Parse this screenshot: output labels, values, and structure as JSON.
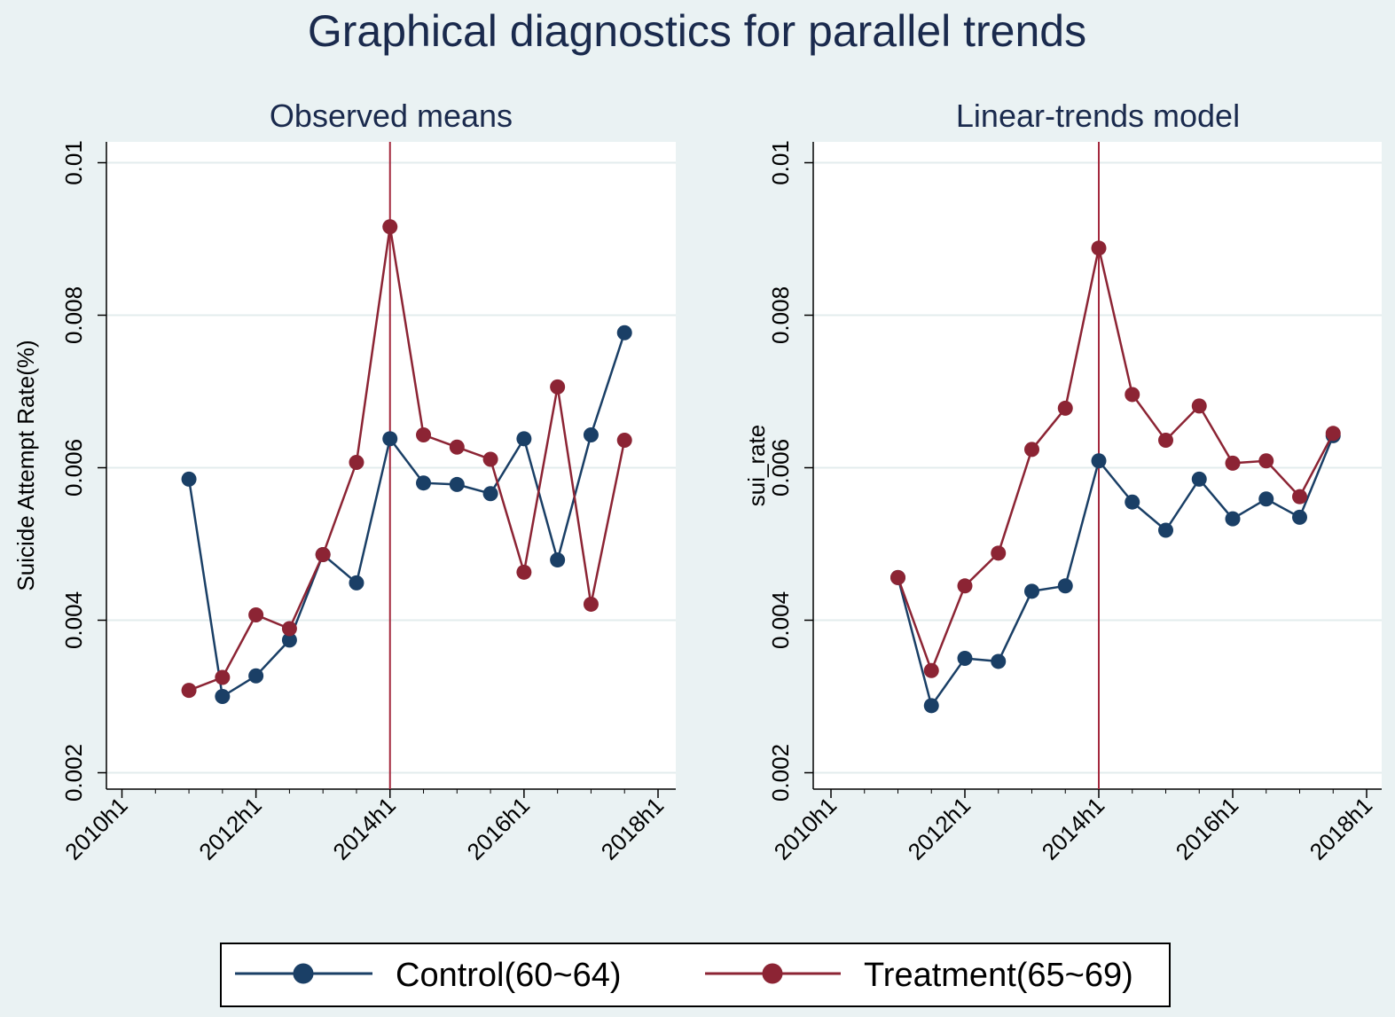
{
  "figure": {
    "title": "Graphical diagnostics for parallel trends",
    "background": "#eaf2f3",
    "title_color": "#1a2a4d"
  },
  "legend": {
    "placement": "bottom",
    "items": [
      {
        "label": "Control(60~64)",
        "color": "#1a3f66"
      },
      {
        "label": "Treatment(65~69)",
        "color": "#8c2434"
      }
    ]
  },
  "chart_data": [
    {
      "type": "line",
      "title": "Observed means",
      "xlabel": "",
      "ylabel": "Suicide Attempt Rate(%)",
      "x_ticks": [
        "2010h1",
        "2012h1",
        "2014h1",
        "2016h1",
        "2018h1"
      ],
      "x_tick_values": [
        2010.0,
        2012.0,
        2014.0,
        2016.0,
        2018.0
      ],
      "xlim": [
        2010.0,
        2018.0
      ],
      "y_ticks": [
        "0.002",
        "0.004",
        "0.006",
        "0.008",
        "0.01"
      ],
      "y_tick_values": [
        0.002,
        0.004,
        0.006,
        0.008,
        0.01
      ],
      "ylim": [
        0.002,
        0.01
      ],
      "grid": true,
      "reference_line_x": 2014.0,
      "reference_line_color": "#a3283d",
      "x": [
        2011.0,
        2011.5,
        2012.0,
        2012.5,
        2013.0,
        2013.5,
        2014.0,
        2014.5,
        2015.0,
        2015.5,
        2016.0,
        2016.5,
        2017.0,
        2017.5
      ],
      "series": [
        {
          "name": "Control(60~64)",
          "color": "#1a3f66",
          "values": [
            0.00585,
            0.003,
            0.00327,
            0.00374,
            0.00486,
            0.00449,
            0.00638,
            0.0058,
            0.00578,
            0.00566,
            0.00638,
            0.00479,
            0.00643,
            0.00777
          ]
        },
        {
          "name": "Treatment(65~69)",
          "color": "#8c2434",
          "values": [
            0.00308,
            0.00325,
            0.00407,
            0.00389,
            0.00486,
            0.00607,
            0.00916,
            0.00643,
            0.00627,
            0.00611,
            0.00463,
            0.00706,
            0.00421,
            0.00636
          ]
        }
      ]
    },
    {
      "type": "line",
      "title": "Linear-trends model",
      "xlabel": "",
      "ylabel": "sui_rate",
      "x_ticks": [
        "2010h1",
        "2012h1",
        "2014h1",
        "2016h1",
        "2018h1"
      ],
      "x_tick_values": [
        2010.0,
        2012.0,
        2014.0,
        2016.0,
        2018.0
      ],
      "xlim": [
        2010.0,
        2018.0
      ],
      "y_ticks": [
        "0.002",
        "0.004",
        "0.006",
        "0.008",
        "0.01"
      ],
      "y_tick_values": [
        0.002,
        0.004,
        0.006,
        0.008,
        0.01
      ],
      "ylim": [
        0.002,
        0.01
      ],
      "grid": true,
      "reference_line_x": 2014.0,
      "reference_line_color": "#a3283d",
      "x": [
        2011.0,
        2011.5,
        2012.0,
        2012.5,
        2013.0,
        2013.5,
        2014.0,
        2014.5,
        2015.0,
        2015.5,
        2016.0,
        2016.5,
        2017.0,
        2017.5
      ],
      "series": [
        {
          "name": "Control(60~64)",
          "color": "#1a3f66",
          "values": [
            0.00456,
            0.00288,
            0.0035,
            0.00346,
            0.00438,
            0.00445,
            0.00609,
            0.00555,
            0.00518,
            0.00585,
            0.00533,
            0.00559,
            0.00535,
            0.00642
          ]
        },
        {
          "name": "Treatment(65~69)",
          "color": "#8c2434",
          "values": [
            0.00456,
            0.00334,
            0.00445,
            0.00488,
            0.00624,
            0.00678,
            0.00888,
            0.00696,
            0.00636,
            0.00681,
            0.00606,
            0.00609,
            0.00562,
            0.00645
          ]
        }
      ]
    }
  ]
}
